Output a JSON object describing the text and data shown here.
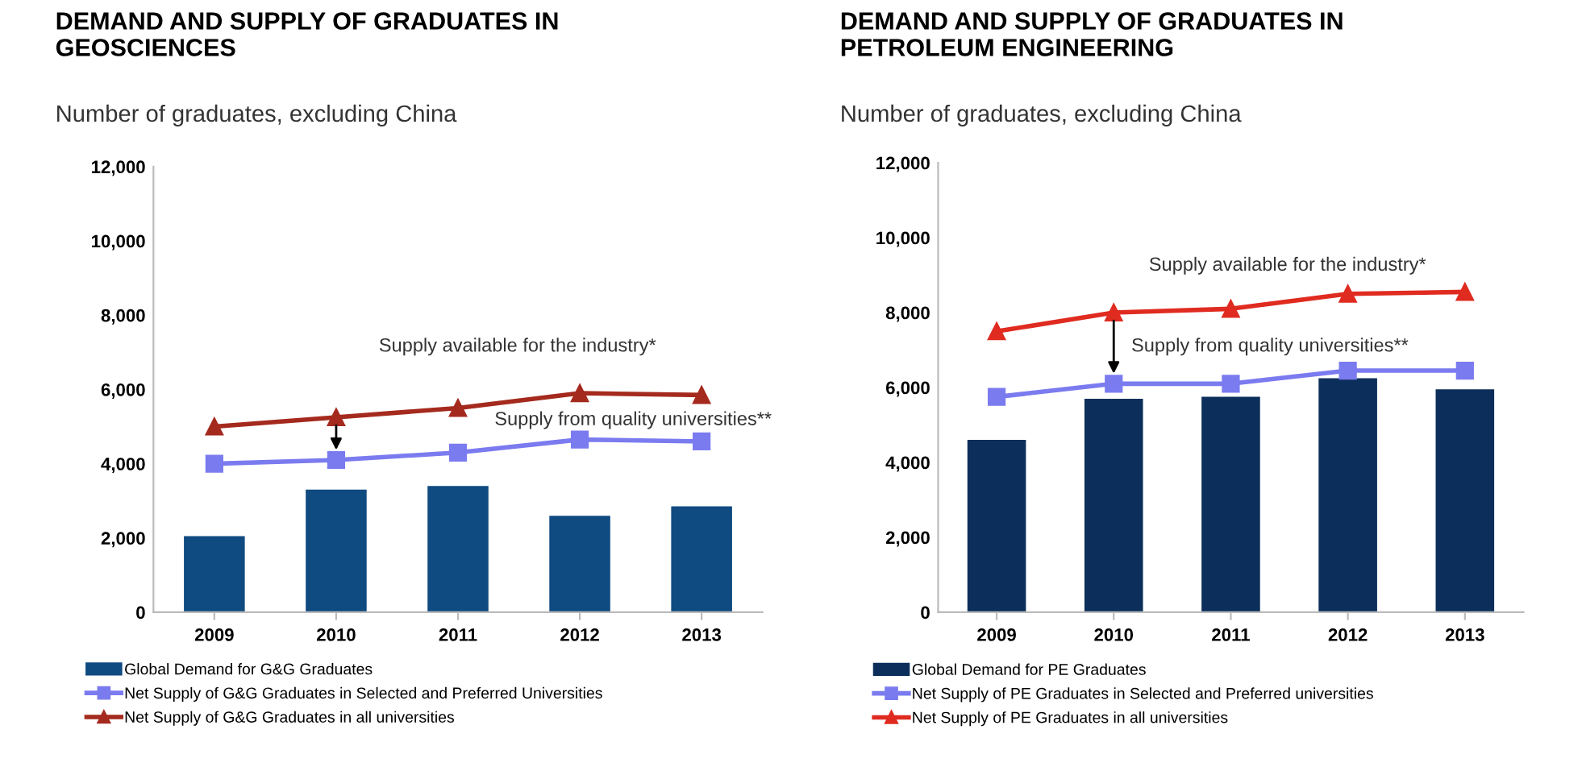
{
  "chart_data": [
    {
      "type": "bar",
      "title": "DEMAND AND SUPPLY OF GRADUATES IN\nGEOSCIENCES",
      "subtitle": "Number of graduates, excluding China",
      "categories": [
        "2009",
        "2010",
        "2011",
        "2012",
        "2013"
      ],
      "ylim": [
        0,
        12000
      ],
      "yticks": [
        {
          "value": 0,
          "label": "0"
        },
        {
          "value": 2000,
          "label": "2,000"
        },
        {
          "value": 4000,
          "label": "4,000"
        },
        {
          "value": 6000,
          "label": "6,000"
        },
        {
          "value": 8000,
          "label": "8,000"
        },
        {
          "value": 10000,
          "label": "10,000"
        },
        {
          "value": 12000,
          "label": "12,000"
        }
      ],
      "grid": false,
      "legend": "bottom",
      "series": [
        {
          "name": "Global Demand for G&G Graduates",
          "color": "#0f4a80",
          "values": [
            2050,
            3300,
            3400,
            2600,
            2850
          ]
        },
        {
          "type": "line",
          "marker": "square",
          "name": "Net Supply of G&G Graduates in Selected and Preferred Universities",
          "color": "#7b7bf0",
          "values": [
            4000,
            4100,
            4300,
            4650,
            4600
          ]
        },
        {
          "type": "line",
          "marker": "triangle",
          "name": "Net Supply of G&G Graduates in all universities",
          "color": "#a52a1e",
          "values": [
            5000,
            5250,
            5500,
            5900,
            5850
          ]
        }
      ],
      "annotations": [
        "Supply available for the industry*",
        "Supply from quality universities**"
      ]
    },
    {
      "type": "bar",
      "title": "DEMAND AND SUPPLY OF GRADUATES IN\nPETROLEUM ENGINEERING",
      "subtitle": "Number of graduates, excluding China",
      "categories": [
        "2009",
        "2010",
        "2011",
        "2012",
        "2013"
      ],
      "ylim": [
        0,
        12000
      ],
      "yticks": [
        {
          "value": 0,
          "label": "0"
        },
        {
          "value": 2000,
          "label": "2,000"
        },
        {
          "value": 4000,
          "label": "4,000"
        },
        {
          "value": 6000,
          "label": "6,000"
        },
        {
          "value": 8000,
          "label": "8,000"
        },
        {
          "value": 10000,
          "label": "10,000"
        },
        {
          "value": 12000,
          "label": "12,000"
        }
      ],
      "grid": false,
      "legend": "bottom",
      "series": [
        {
          "name": "Global Demand for PE Graduates",
          "color": "#0b2f5a",
          "values": [
            4600,
            5700,
            5750,
            6250,
            5950
          ]
        },
        {
          "type": "line",
          "marker": "square",
          "name": "Net Supply of PE Graduates in Selected and Preferred universities",
          "color": "#7b7bf0",
          "values": [
            5750,
            6100,
            6100,
            6450,
            6450
          ]
        },
        {
          "type": "line",
          "marker": "triangle",
          "name": "Net Supply of PE Graduates in all universities",
          "color": "#e02b20",
          "values": [
            7500,
            8000,
            8100,
            8500,
            8550
          ]
        }
      ],
      "annotations": [
        "Supply available for the industry*",
        "Supply from quality universities**"
      ]
    }
  ]
}
